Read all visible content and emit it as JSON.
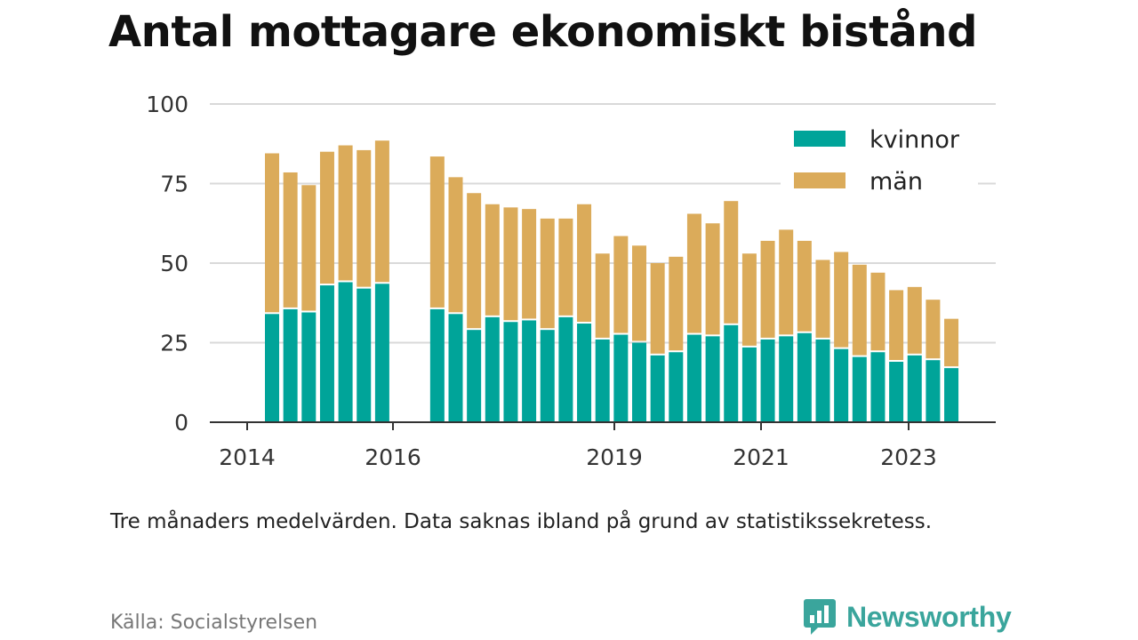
{
  "title": "Antal mottagare ekonomiskt bistånd",
  "note": "Tre månaders medelvärden. Data saknas ibland på grund av statistikssekretess.",
  "source": "Källa: Socialstyrelsen",
  "brand": "Newsworthy",
  "icons": {
    "brand_logo": "newsworthy-logo-icon"
  },
  "colors": {
    "kvinnor": "#00a499",
    "man": "#dbab5a",
    "brand": "#3aa59c"
  },
  "chart_data": {
    "type": "bar",
    "stacked": true,
    "y_ticks": [
      0,
      25,
      50,
      75,
      100
    ],
    "ylim": [
      0,
      100
    ],
    "x_ticks": [
      "2014",
      "2016",
      "2019",
      "2021",
      "2023"
    ],
    "grid": true,
    "legend_position": "top-right",
    "series": [
      {
        "name": "kvinnor",
        "color": "#00a499",
        "values": [
          34,
          35.5,
          34.5,
          43,
          44,
          42,
          43.5,
          null,
          null,
          35.5,
          34,
          29,
          33,
          31.5,
          32,
          29,
          33,
          31,
          26,
          27.5,
          25,
          21,
          22,
          27.5,
          27,
          30.5,
          23.5,
          26,
          27,
          28,
          26,
          23,
          20.5,
          22,
          19,
          21,
          19.5,
          17
        ]
      },
      {
        "name": "män",
        "color": "#dbab5a",
        "values": [
          50.5,
          43,
          40,
          42,
          43,
          43.5,
          45,
          null,
          null,
          48,
          43,
          43,
          35.5,
          36,
          35,
          35,
          31,
          37.5,
          27,
          31,
          30.5,
          29,
          30,
          38,
          35.5,
          39,
          29.5,
          31,
          33.5,
          29,
          25,
          30.5,
          29,
          25,
          22.5,
          21.5,
          19,
          15.5
        ]
      }
    ]
  }
}
